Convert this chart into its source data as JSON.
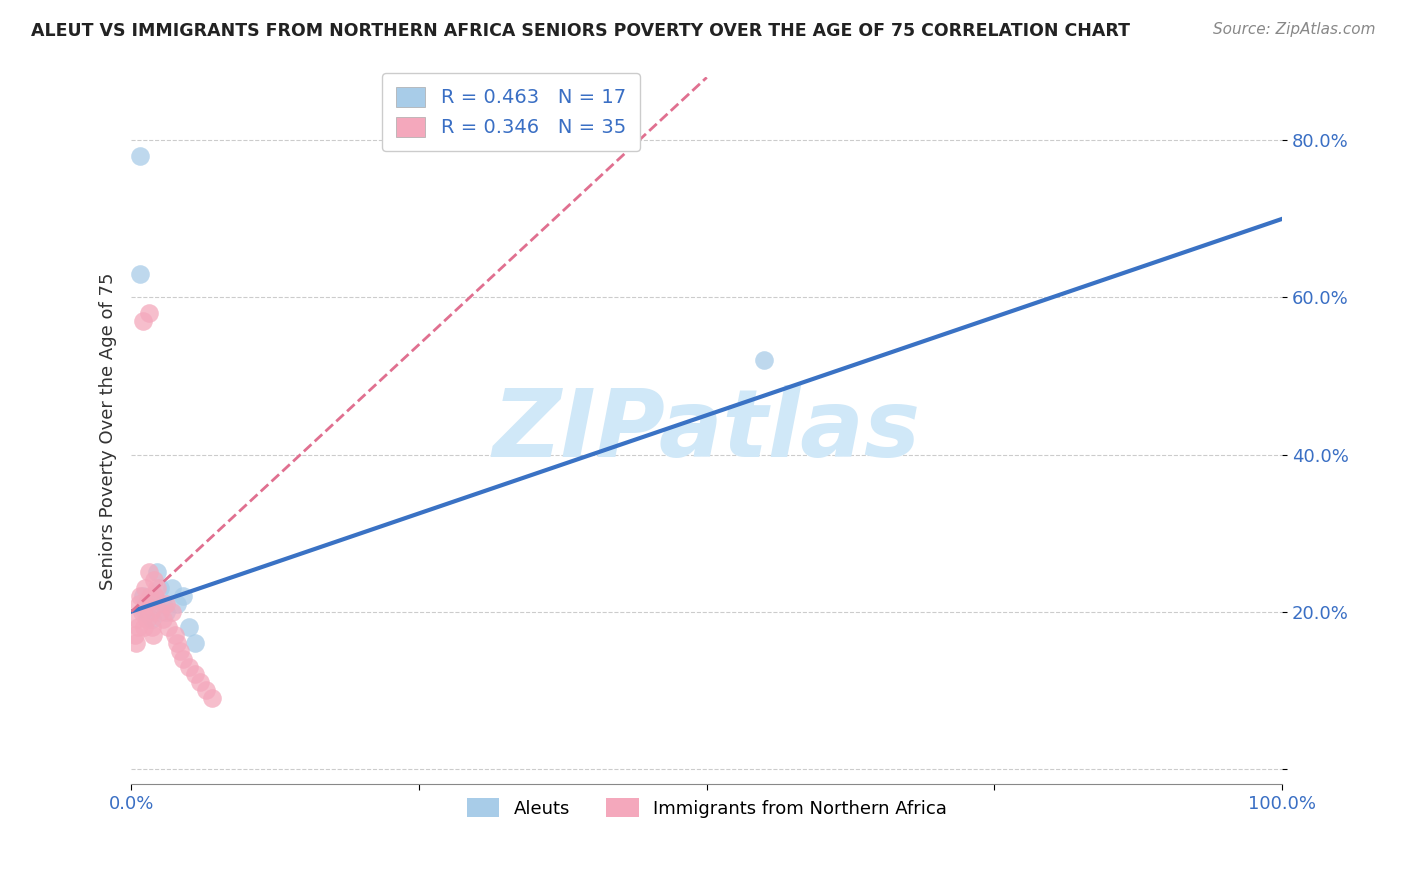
{
  "title": "ALEUT VS IMMIGRANTS FROM NORTHERN AFRICA SENIORS POVERTY OVER THE AGE OF 75 CORRELATION CHART",
  "source": "Source: ZipAtlas.com",
  "ylabel": "Seniors Poverty Over the Age of 75",
  "legend_label_1": "Aleuts",
  "legend_label_2": "Immigrants from Northern Africa",
  "R1": 0.463,
  "N1": 17,
  "R2": 0.346,
  "N2": 35,
  "color1": "#a8cce8",
  "color2": "#f4a8bc",
  "line_color1": "#3a72c4",
  "line_color2": "#e07090",
  "watermark": "ZIPatlas",
  "watermark_color": "#d0e8f8",
  "xlim": [
    0.0,
    1.0
  ],
  "ylim": [
    -0.02,
    0.88
  ],
  "background_color": "#ffffff",
  "grid_color": "#cccccc",
  "aleuts_x": [
    0.008,
    0.01,
    0.012,
    0.015,
    0.018,
    0.02,
    0.022,
    0.025,
    0.028,
    0.03,
    0.035,
    0.04,
    0.045,
    0.05,
    0.055,
    0.55,
    0.008
  ],
  "aleuts_y": [
    0.78,
    0.22,
    0.2,
    0.21,
    0.19,
    0.22,
    0.25,
    0.23,
    0.21,
    0.2,
    0.23,
    0.21,
    0.22,
    0.18,
    0.16,
    0.52,
    0.63
  ],
  "immigrants_x": [
    0.003,
    0.004,
    0.005,
    0.006,
    0.007,
    0.008,
    0.009,
    0.01,
    0.011,
    0.012,
    0.013,
    0.014,
    0.015,
    0.016,
    0.017,
    0.018,
    0.019,
    0.02,
    0.021,
    0.022,
    0.025,
    0.028,
    0.03,
    0.032,
    0.035,
    0.038,
    0.04,
    0.042,
    0.045,
    0.05,
    0.055,
    0.06,
    0.065,
    0.07,
    0.015
  ],
  "immigrants_y": [
    0.17,
    0.16,
    0.19,
    0.18,
    0.21,
    0.22,
    0.2,
    0.57,
    0.18,
    0.23,
    0.21,
    0.19,
    0.25,
    0.22,
    0.2,
    0.18,
    0.17,
    0.24,
    0.22,
    0.23,
    0.2,
    0.19,
    0.21,
    0.18,
    0.2,
    0.17,
    0.16,
    0.15,
    0.14,
    0.13,
    0.12,
    0.11,
    0.1,
    0.09,
    0.58
  ],
  "blue_line_x0": 0.0,
  "blue_line_y0": 0.2,
  "blue_line_x1": 1.0,
  "blue_line_y1": 0.7,
  "pink_line_x0": 0.0,
  "pink_line_y0": 0.2,
  "pink_line_x1": 0.5,
  "pink_line_y1": 0.88
}
